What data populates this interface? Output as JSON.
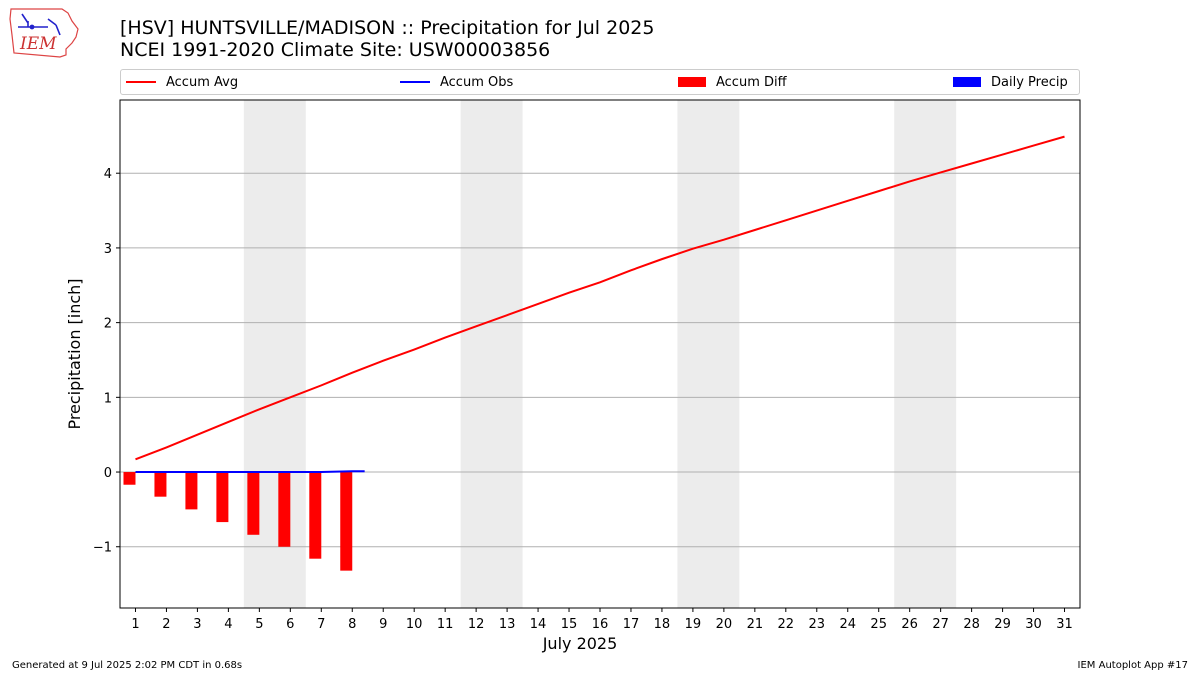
{
  "header": {
    "title_line1": "[HSV] HUNTSVILLE/MADISON :: Precipitation for Jul 2025",
    "title_line2": "NCEI 1991-2020 Climate Site: USW00003856"
  },
  "logo": {
    "text": "IEM",
    "icon": "iem-iowa-logo"
  },
  "legend": {
    "placement": "top, spanning plot width",
    "items": [
      {
        "label": "Accum Avg",
        "kind": "line",
        "color": "#ff0000"
      },
      {
        "label": "Accum Obs",
        "kind": "line",
        "color": "#0000ff"
      },
      {
        "label": "Accum Diff",
        "kind": "patch",
        "color": "#ff0000"
      },
      {
        "label": "Daily Precip",
        "kind": "patch",
        "color": "#0000ff"
      }
    ]
  },
  "footer": {
    "left": "Generated at 9 Jul 2025 2:02 PM CDT in 0.68s",
    "right": "IEM Autoplot App #17"
  },
  "chart_data": {
    "type": "line",
    "xlabel": "July 2025",
    "ylabel": "Precipitation [inch]",
    "x_ticks": [
      "1",
      "2",
      "3",
      "4",
      "5",
      "6",
      "7",
      "8",
      "9",
      "10",
      "11",
      "12",
      "13",
      "14",
      "15",
      "16",
      "17",
      "18",
      "19",
      "20",
      "21",
      "22",
      "23",
      "24",
      "25",
      "26",
      "27",
      "28",
      "29",
      "30",
      "31"
    ],
    "y_ticks": [
      "−1",
      "0",
      "1",
      "2",
      "3",
      "4"
    ],
    "xlim": [
      0.5,
      31.5
    ],
    "ylim": [
      -1.82,
      4.98
    ],
    "grid": "horizontal",
    "weekend_shading": [
      [
        4.5,
        6.5
      ],
      [
        11.5,
        13.5
      ],
      [
        18.5,
        20.5
      ],
      [
        25.5,
        27.5
      ]
    ],
    "weekend_color": "#ececec",
    "series": [
      {
        "name": "Accum Avg",
        "kind": "line",
        "color": "#ff0000",
        "x": [
          1,
          2,
          3,
          4,
          5,
          6,
          7,
          8,
          9,
          10,
          11,
          12,
          13,
          14,
          15,
          16,
          17,
          18,
          19,
          20,
          21,
          22,
          23,
          24,
          25,
          26,
          27,
          28,
          29,
          30,
          31
        ],
        "values": [
          0.17,
          0.33,
          0.5,
          0.67,
          0.84,
          1.0,
          1.16,
          1.33,
          1.49,
          1.64,
          1.8,
          1.95,
          2.1,
          2.25,
          2.4,
          2.54,
          2.7,
          2.85,
          2.99,
          3.11,
          3.24,
          3.37,
          3.5,
          3.63,
          3.76,
          3.89,
          4.01,
          4.13,
          4.25,
          4.37,
          4.49
        ]
      },
      {
        "name": "Accum Obs",
        "kind": "line",
        "color": "#0000ff",
        "x": [
          1,
          2,
          3,
          4,
          5,
          6,
          7,
          8,
          8.4
        ],
        "values": [
          0,
          0,
          0,
          0,
          0,
          0,
          0,
          0.01,
          0.01
        ]
      },
      {
        "name": "Accum Diff",
        "kind": "bar",
        "color": "#ff0000",
        "x": [
          1,
          2,
          3,
          4,
          5,
          6,
          7,
          8
        ],
        "values": [
          -0.17,
          -0.33,
          -0.5,
          -0.67,
          -0.84,
          -1.0,
          -1.16,
          -1.32
        ]
      },
      {
        "name": "Daily Precip",
        "kind": "bar",
        "color": "#0000ff",
        "x": [
          1,
          2,
          3,
          4,
          5,
          6,
          7,
          8
        ],
        "values": [
          0,
          0,
          0,
          0,
          0,
          0,
          0,
          0.01
        ]
      }
    ]
  }
}
